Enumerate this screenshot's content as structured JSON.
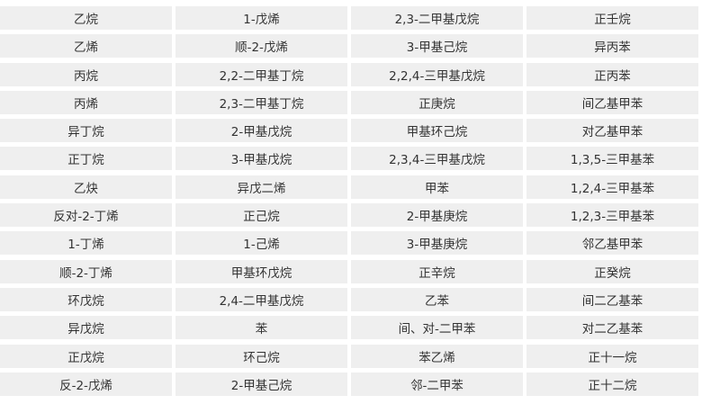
{
  "table": {
    "rows": [
      [
        "乙烷",
        "1-戊烯",
        "2,3-二甲基戊烷",
        "正壬烷"
      ],
      [
        "乙烯",
        "顺-2-戊烯",
        "3-甲基己烷",
        "异丙苯"
      ],
      [
        "丙烷",
        "2,2-二甲基丁烷",
        "2,2,4-三甲基戊烷",
        "正丙苯"
      ],
      [
        "丙烯",
        "2,3-二甲基丁烷",
        "正庚烷",
        "间乙基甲苯"
      ],
      [
        "异丁烷",
        "2-甲基戊烷",
        "甲基环己烷",
        "对乙基甲苯"
      ],
      [
        "正丁烷",
        "3-甲基戊烷",
        "2,3,4-三甲基戊烷",
        "1,3,5-三甲基苯"
      ],
      [
        "乙炔",
        "异戊二烯",
        "甲苯",
        "1,2,4-三甲基苯"
      ],
      [
        "反对-2-丁烯",
        "正己烷",
        "2-甲基庚烷",
        "1,2,3-三甲基苯"
      ],
      [
        "1-丁烯",
        "1-己烯",
        "3-甲基庚烷",
        "邻乙基甲苯"
      ],
      [
        "顺-2-丁烯",
        "甲基环戊烷",
        "正辛烷",
        "正癸烷"
      ],
      [
        "环戊烷",
        "2,4-二甲基戊烷",
        "乙苯",
        "间二乙基苯"
      ],
      [
        "异戊烷",
        "苯",
        "间、对-二甲苯",
        "对二乙基苯"
      ],
      [
        "正戊烷",
        "环己烷",
        "苯乙烯",
        "正十一烷"
      ],
      [
        "反-2-戊烯",
        "2-甲基己烷",
        "邻-二甲苯",
        "正十二烷"
      ]
    ]
  },
  "colors": {
    "cell_background": "#efefef",
    "text": "#333333"
  }
}
